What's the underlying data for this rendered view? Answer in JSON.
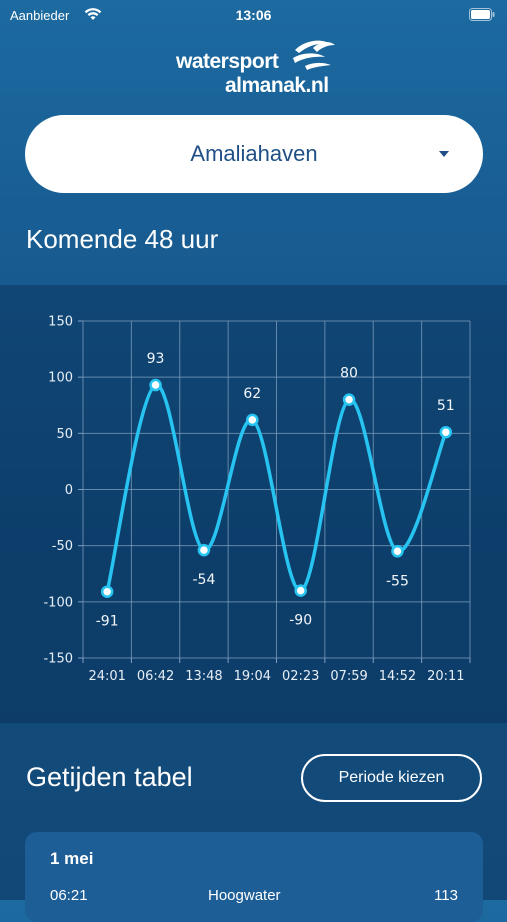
{
  "status_bar": {
    "carrier": "Aanbieder",
    "time": "13:06"
  },
  "logo": {
    "line1": "watersport",
    "line2": "almanak.nl"
  },
  "location": {
    "selected": "Amaliahaven"
  },
  "forecast": {
    "title": "Komende 48 uur"
  },
  "chart_data": {
    "type": "line",
    "categories": [
      "24:01",
      "06:42",
      "13:48",
      "19:04",
      "02:23",
      "07:59",
      "14:52",
      "20:11"
    ],
    "values": [
      -91,
      93,
      -54,
      62,
      -90,
      80,
      -55,
      51
    ],
    "ylim": [
      -150,
      150
    ],
    "yticks": [
      150,
      100,
      50,
      0,
      -50,
      -100,
      -150
    ],
    "grid": true,
    "line_color": "#27c4f2"
  },
  "table": {
    "title": "Getijden tabel",
    "period_button": "Periode kiezen",
    "cards": [
      {
        "date": "1 mei",
        "rows": [
          {
            "time": "06:21",
            "type": "Hoogwater",
            "height": "113"
          }
        ]
      }
    ]
  }
}
